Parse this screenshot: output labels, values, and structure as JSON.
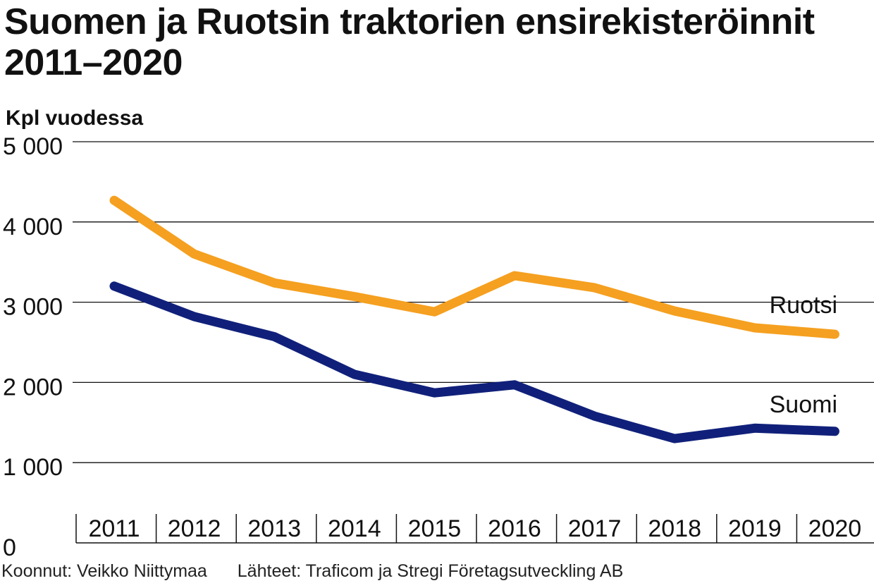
{
  "chart_data": {
    "type": "line",
    "title": "Suomen ja Ruotsin traktorien ensirekisteröinnit 2011–2020",
    "ylabel": "Kpl vuodessa",
    "xlabel": "",
    "x": [
      "2011",
      "2012",
      "2013",
      "2014",
      "2015",
      "2016",
      "2017",
      "2018",
      "2019",
      "2020"
    ],
    "ylim": [
      0,
      5000
    ],
    "yticks": [
      {
        "value": 0,
        "label": "0"
      },
      {
        "value": 1000,
        "label": "1 000"
      },
      {
        "value": 2000,
        "label": "2 000"
      },
      {
        "value": 3000,
        "label": "3 000"
      },
      {
        "value": 4000,
        "label": "4 000"
      },
      {
        "value": 5000,
        "label": "5 000"
      }
    ],
    "grid": true,
    "legend": "inline labels at right end of lines",
    "series": [
      {
        "name": "Ruotsi",
        "color": "#f5a020",
        "values": [
          4270,
          3600,
          3240,
          3070,
          2880,
          3330,
          3180,
          2890,
          2680,
          2600
        ]
      },
      {
        "name": "Suomi",
        "color": "#10207a",
        "values": [
          3200,
          2820,
          2570,
          2100,
          1870,
          1970,
          1580,
          1300,
          1430,
          1390
        ]
      }
    ]
  },
  "footer": {
    "credit": "Koonnut: Veikko Niittymaa",
    "sources": "Lähteet: Traficom ja Stregi Företagsutveckling AB"
  }
}
